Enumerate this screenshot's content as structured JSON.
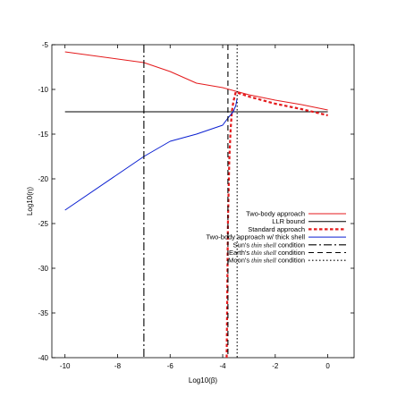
{
  "chart_data": {
    "type": "line",
    "title": "",
    "xlabel": "Log10(β)",
    "ylabel": "Log10(η)",
    "xlim": [
      -10.5,
      1
    ],
    "ylim": [
      -40,
      -5
    ],
    "xticks": [
      -10,
      -8,
      -6,
      -4,
      -2,
      0
    ],
    "yticks": [
      -5,
      -10,
      -15,
      -20,
      -25,
      -30,
      -35,
      -40
    ],
    "grid": false,
    "legend_position": "right",
    "colors": {
      "red": "#e41a1c",
      "blue": "#0a1fd1",
      "black": "#000000"
    },
    "series": [
      {
        "name": "Two-body approach",
        "color": "#e41a1c",
        "style": "solid",
        "x": [
          -10,
          -7,
          -6,
          -5,
          -4,
          -3,
          -2,
          -1,
          0
        ],
        "y": [
          -5.8,
          -7.0,
          -8.0,
          -9.3,
          -9.8,
          -10.6,
          -11.2,
          -11.7,
          -12.3
        ]
      },
      {
        "name": "LLR bound",
        "color": "#000000",
        "style": "solid",
        "x": [
          -10,
          0
        ],
        "y": [
          -12.5,
          -12.5
        ]
      },
      {
        "name": "Standard approach",
        "color": "#e41a1c",
        "style": "dashed-thick",
        "x": [
          -3.85,
          -3.8,
          -3.75,
          -3.7,
          -3.65,
          -3.6,
          -3.55,
          -3.5,
          -3.0,
          -2.0,
          -1.0,
          0.0
        ],
        "y": [
          -40,
          -25,
          -18,
          -14.5,
          -12.5,
          -11.5,
          -10.8,
          -10.3,
          -10.8,
          -11.6,
          -12.2,
          -12.9
        ]
      },
      {
        "name": "Two-body approach w/ thick shell",
        "color": "#0a1fd1",
        "style": "solid",
        "x": [
          -10,
          -7,
          -6,
          -5,
          -4,
          -3.8,
          -3.6,
          -3.5,
          -3.45
        ],
        "y": [
          -23.5,
          -17.5,
          -15.8,
          -15.0,
          -14.0,
          -13.2,
          -12.5,
          -11.8,
          -11.0
        ]
      },
      {
        "name": "Sun's thin shell condition",
        "name_parts": [
          "Sun's ",
          "thin shell",
          " condition"
        ],
        "color": "#000000",
        "style": "dashdot",
        "x": [
          -7,
          -7
        ],
        "y": [
          -5,
          -40
        ]
      },
      {
        "name": "Earth's thin shell condition",
        "name_parts": [
          "Earth's ",
          "thin shell",
          " condition"
        ],
        "color": "#000000",
        "style": "dashed",
        "x": [
          -3.8,
          -3.8
        ],
        "y": [
          -5,
          -40
        ]
      },
      {
        "name": "Moon's thin shell condition",
        "name_parts": [
          "Moon's ",
          "thin shell",
          " condition"
        ],
        "color": "#000000",
        "style": "dotted",
        "x": [
          -3.45,
          -3.45
        ],
        "y": [
          -5,
          -40
        ]
      }
    ]
  }
}
